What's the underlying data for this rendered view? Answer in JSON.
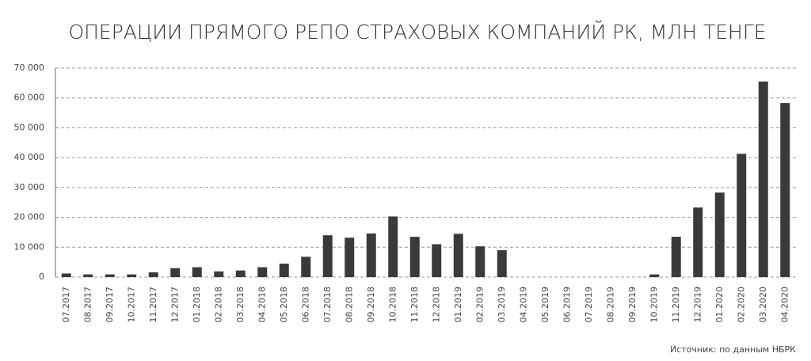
{
  "chart_data": {
    "type": "bar",
    "title": "ОПЕРАЦИИ ПРЯМОГО РЕПО СТРАХОВЫХ КОМПАНИЙ РК, МЛН ТЕНГЕ",
    "source": "Источник: по данным НБРК",
    "categories": [
      "07.2017",
      "08.2017",
      "09.2017",
      "10.2017",
      "11.2017",
      "12.2017",
      "01.2018",
      "02.2018",
      "03.2018",
      "04.2018",
      "05.2018",
      "06.2018",
      "07.2018",
      "08.2018",
      "09.2018",
      "10.2018",
      "11.2018",
      "12.2018",
      "01.2019",
      "02.2019",
      "03.2019",
      "04.2019",
      "05.2019",
      "06.2019",
      "07.2019",
      "08.2019",
      "09.2019",
      "10.2019",
      "11.2019",
      "12.2019",
      "01.2020",
      "02.2020",
      "03.2020",
      "04.2020"
    ],
    "values": [
      1200,
      900,
      900,
      900,
      1600,
      3000,
      3300,
      1900,
      2200,
      3300,
      4500,
      6800,
      14000,
      13200,
      14600,
      20300,
      13500,
      11000,
      14500,
      10300,
      9000,
      0,
      0,
      0,
      0,
      0,
      0,
      900,
      13500,
      23300,
      28300,
      41300,
      65500,
      58300
    ],
    "color": "#3a3a3a",
    "ylim": [
      0,
      70000
    ],
    "yticks": [
      0,
      {
        "value": 10000,
        "label": "10 000"
      },
      {
        "value": 20000,
        "label": "20 000"
      },
      {
        "value": 30000,
        "label": "30 000"
      },
      {
        "value": 40000,
        "label": "40 000"
      },
      {
        "value": 50000,
        "label": "50 000"
      },
      {
        "value": 60000,
        "label": "60 000"
      },
      {
        "value": 70000,
        "label": "70 000"
      }
    ],
    "grid": true
  }
}
